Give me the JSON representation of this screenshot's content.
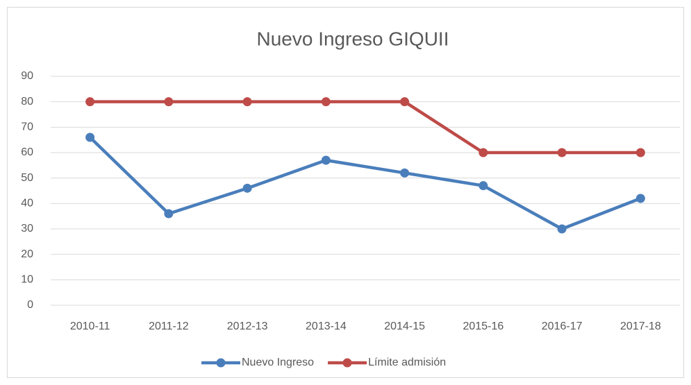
{
  "chart_data": {
    "type": "line",
    "title": "Nuevo Ingreso GIQUII",
    "categories": [
      "2010-11",
      "2011-12",
      "2012-13",
      "2013-14",
      "2014-15",
      "2015-16",
      "2016-17",
      "2017-18"
    ],
    "series": [
      {
        "name": "Nuevo Ingreso",
        "color": "#4a7ebb",
        "values": [
          66,
          36,
          46,
          57,
          52,
          47,
          30,
          42
        ]
      },
      {
        "name": "Límite admisión",
        "color": "#be4b48",
        "values": [
          80,
          80,
          80,
          80,
          80,
          60,
          60,
          60
        ]
      }
    ],
    "ylim": [
      0,
      90
    ],
    "yticks": [
      0,
      10,
      20,
      30,
      40,
      50,
      60,
      70,
      80,
      90
    ],
    "grid": true,
    "legend": "bottom"
  }
}
